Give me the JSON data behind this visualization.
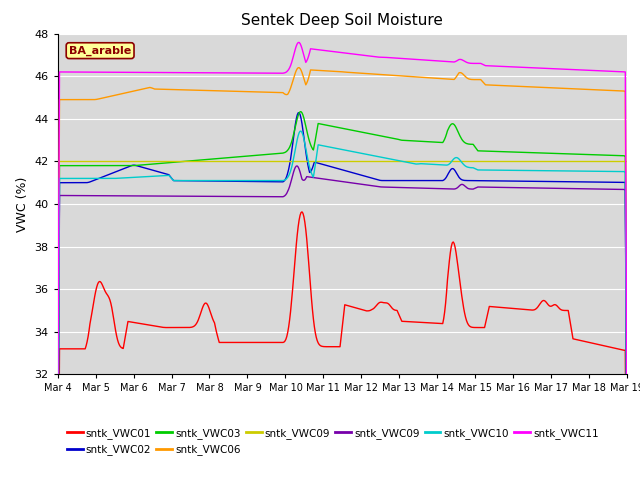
{
  "title": "Sentek Deep Soil Moisture",
  "ylabel": "VWC (%)",
  "ylim": [
    32,
    48
  ],
  "yticks": [
    32,
    34,
    36,
    38,
    40,
    42,
    44,
    46,
    48
  ],
  "xlabel_dates": [
    "Mar 4",
    "Mar 5",
    "Mar 6",
    "Mar 7",
    "Mar 8",
    "Mar 9",
    "Mar 10",
    "Mar 11",
    "Mar 12",
    "Mar 13",
    "Mar 14",
    "Mar 15",
    "Mar 16",
    "Mar 17",
    "Mar 18",
    "Mar 19"
  ],
  "background_color": "#d9d9d9",
  "annotation_text": "BA_arable",
  "annotation_color": "#8b0000",
  "annotation_bg": "#ffff99",
  "legend_entries": [
    {
      "label": "sntk_VWC01",
      "color": "#ff0000"
    },
    {
      "label": "sntk_VWC02",
      "color": "#0000cc"
    },
    {
      "label": "sntk_VWC03",
      "color": "#00cc00"
    },
    {
      "label": "sntk_VWC06",
      "color": "#ff9900"
    },
    {
      "label": "sntk_VWC09",
      "color": "#cccc00"
    },
    {
      "label": "sntk_VWC09",
      "color": "#7700aa"
    },
    {
      "label": "sntk_VWC10",
      "color": "#00cccc"
    },
    {
      "label": "sntk_VWC11",
      "color": "#ff00ff"
    }
  ],
  "lw": 1.0
}
